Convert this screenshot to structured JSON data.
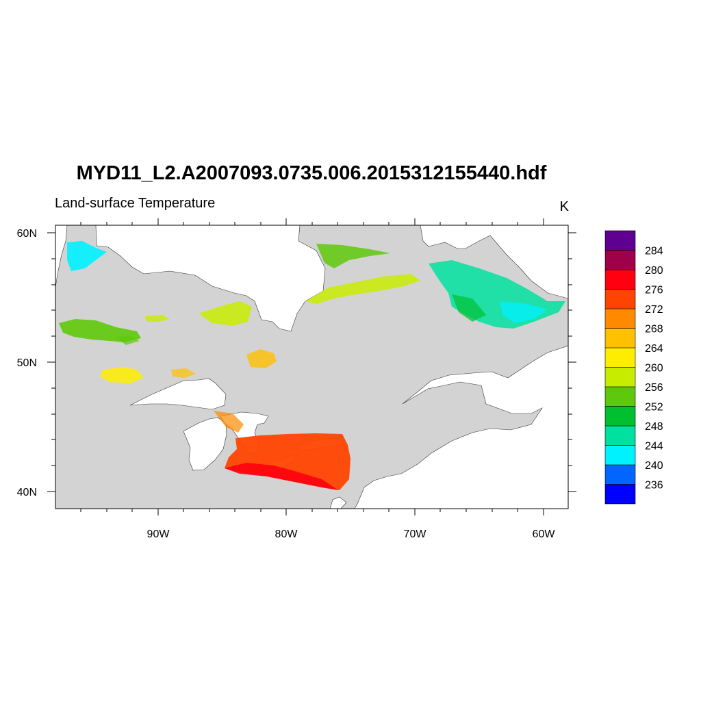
{
  "figure": {
    "title": "MYD11_L2.A2007093.0735.006.2015312155440.hdf",
    "left_subtitle": "Land-surface Temperature",
    "right_subtitle": "K"
  },
  "map": {
    "lon_range": [
      -98,
      -58
    ],
    "lat_range": [
      38.8,
      60.6
    ],
    "x_ticks": [
      {
        "lon": -90,
        "label": "90W"
      },
      {
        "lon": -80,
        "label": "80W"
      },
      {
        "lon": -70,
        "label": "70W"
      },
      {
        "lon": -60,
        "label": "60W"
      }
    ],
    "y_ticks": [
      {
        "lat": 60,
        "label": "60N"
      },
      {
        "lat": 50,
        "label": "50N"
      },
      {
        "lat": 40,
        "label": "40N"
      }
    ],
    "land_color": "#d3d3d3",
    "water_color": "#ffffff"
  },
  "colorbar": {
    "labels": [
      "236",
      "240",
      "244",
      "248",
      "252",
      "256",
      "260",
      "264",
      "268",
      "272",
      "276",
      "280",
      "284"
    ],
    "colors": [
      "#0000ff",
      "#0066ff",
      "#00f2ff",
      "#00e09f",
      "#00c030",
      "#5ec90a",
      "#c8ec00",
      "#ffed00",
      "#ffc000",
      "#ff8a00",
      "#ff4400",
      "#ff0010",
      "#a0004a",
      "#600090"
    ]
  }
}
